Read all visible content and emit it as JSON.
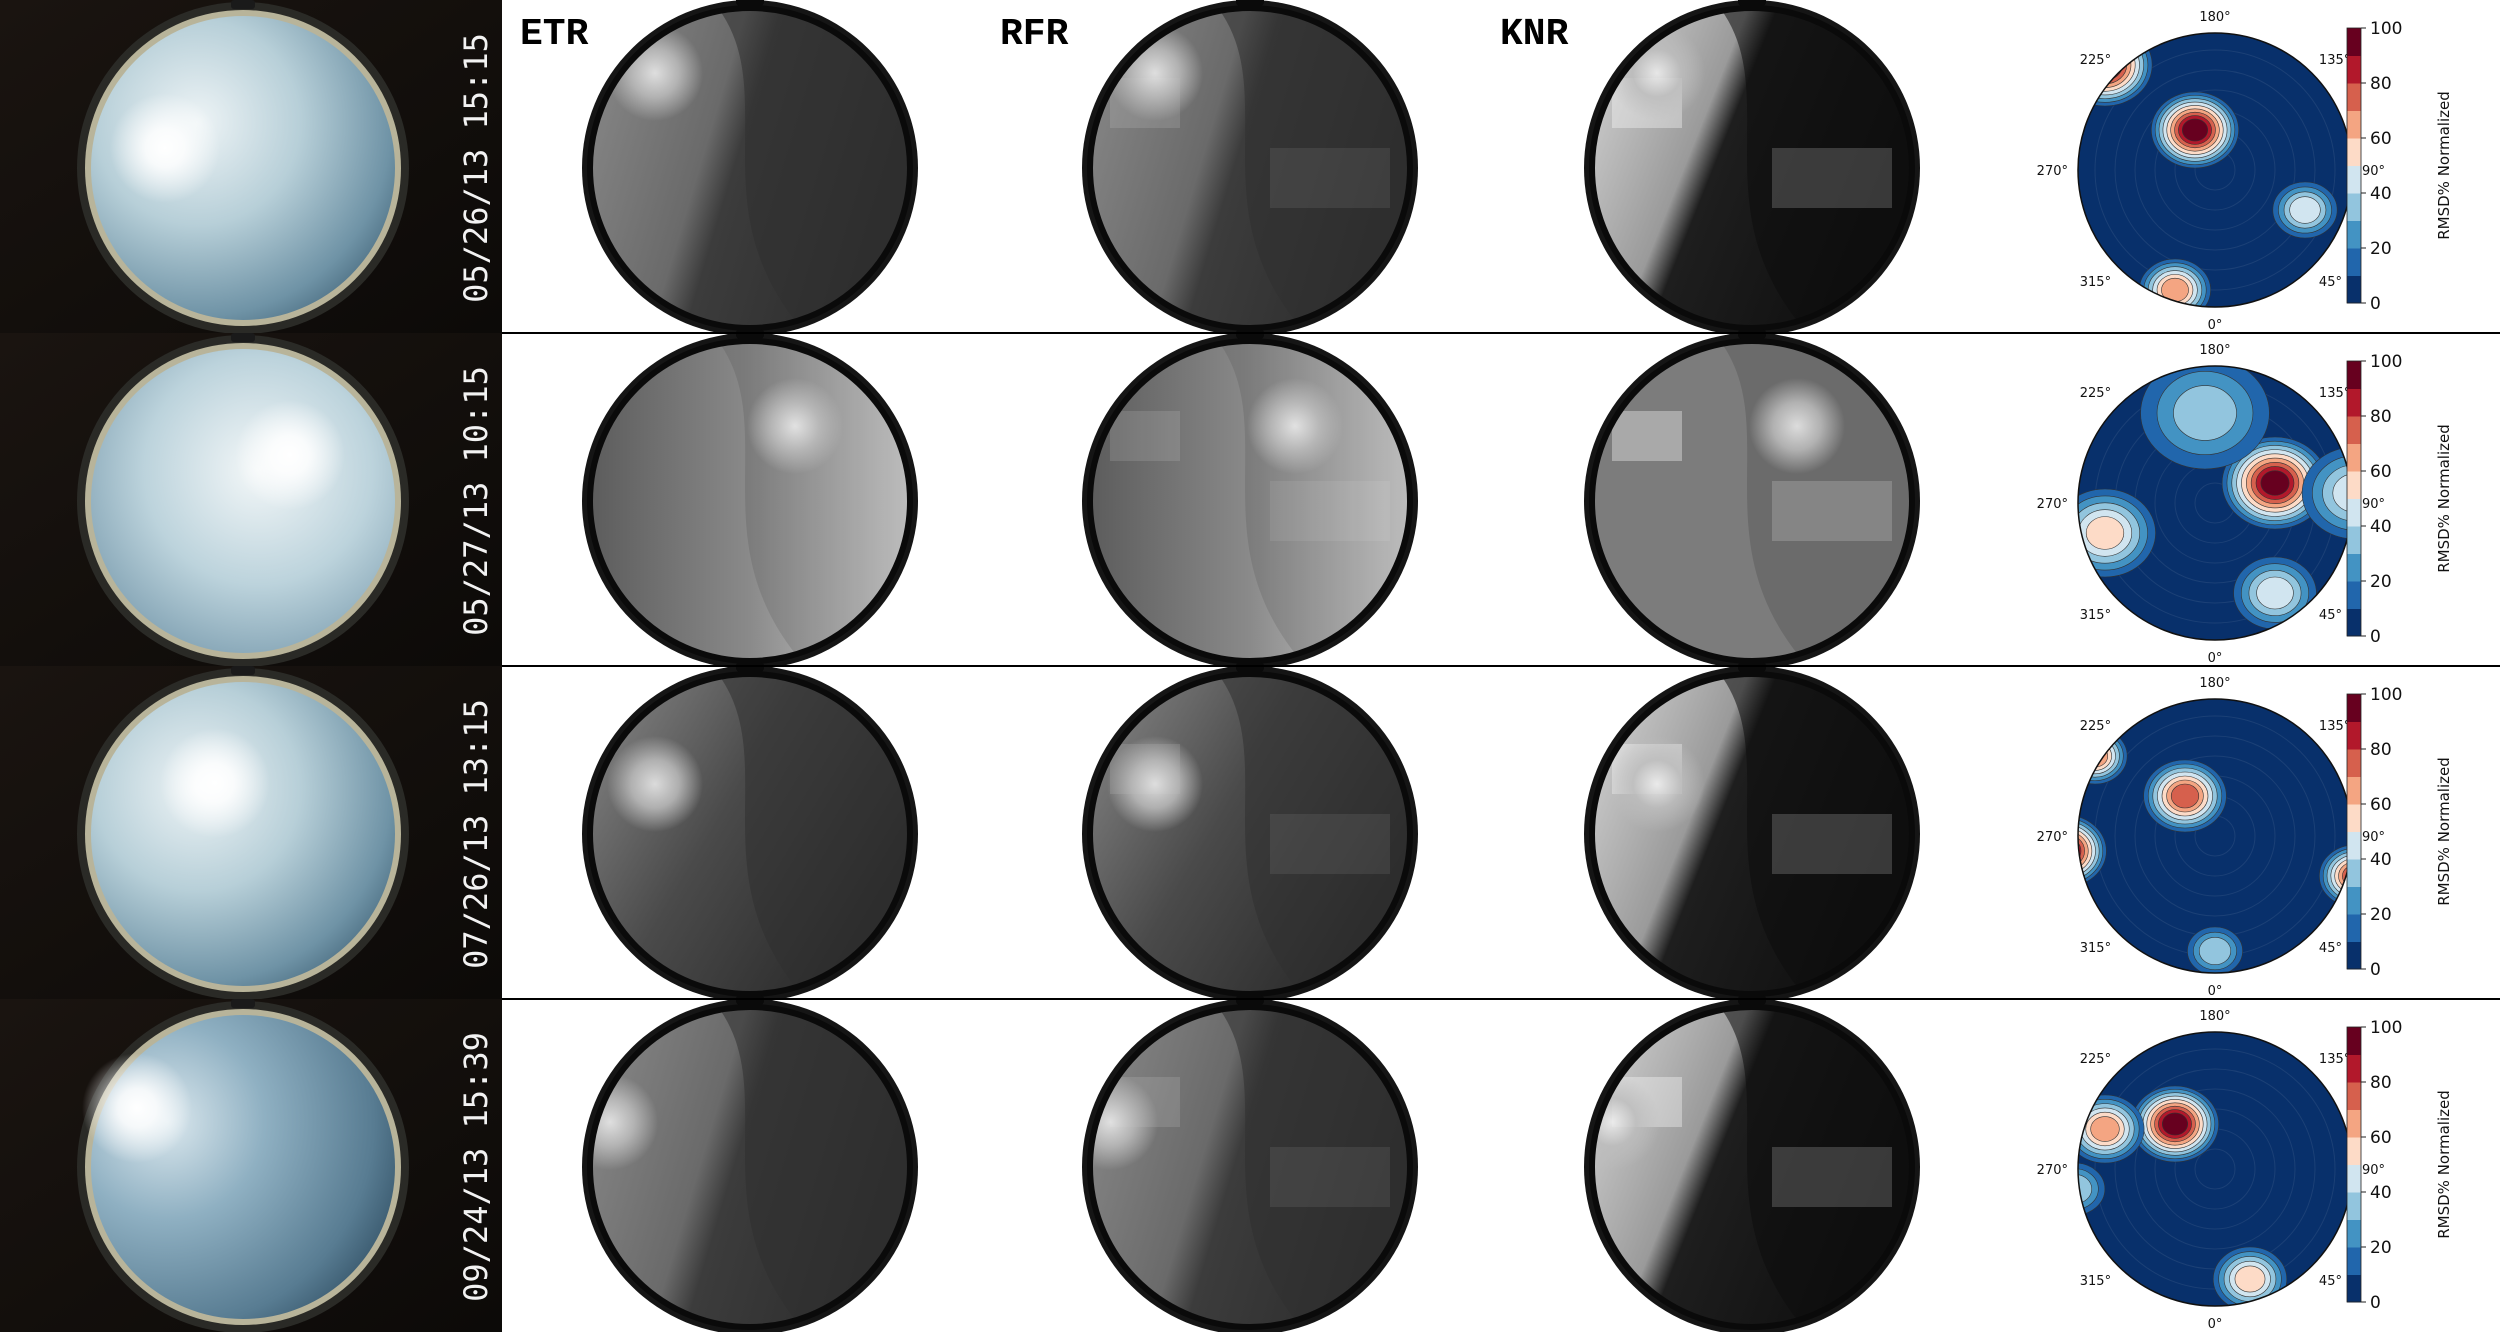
{
  "methods": [
    "ETR",
    "RFR",
    "KNR"
  ],
  "rows": [
    {
      "timestamp": "05/26/13 15:15"
    },
    {
      "timestamp": "05/27/13 10:15"
    },
    {
      "timestamp": "07/26/13 13:15"
    },
    {
      "timestamp": "09/24/13 15:39"
    }
  ],
  "polar": {
    "angle_labels": [
      "180°",
      "135°",
      "90°",
      "45°",
      "0°",
      "315°",
      "270°",
      "225°"
    ]
  },
  "colorbar": {
    "label": "RMSD% Normalized",
    "ticks": [
      "0",
      "20",
      "40",
      "60",
      "80",
      "100"
    ],
    "colors": [
      "#08306b",
      "#2166ac",
      "#4393c3",
      "#92c5de",
      "#d1e5f0",
      "#fddbc7",
      "#f4a582",
      "#d6604d",
      "#b2182b",
      "#67001f"
    ]
  }
}
